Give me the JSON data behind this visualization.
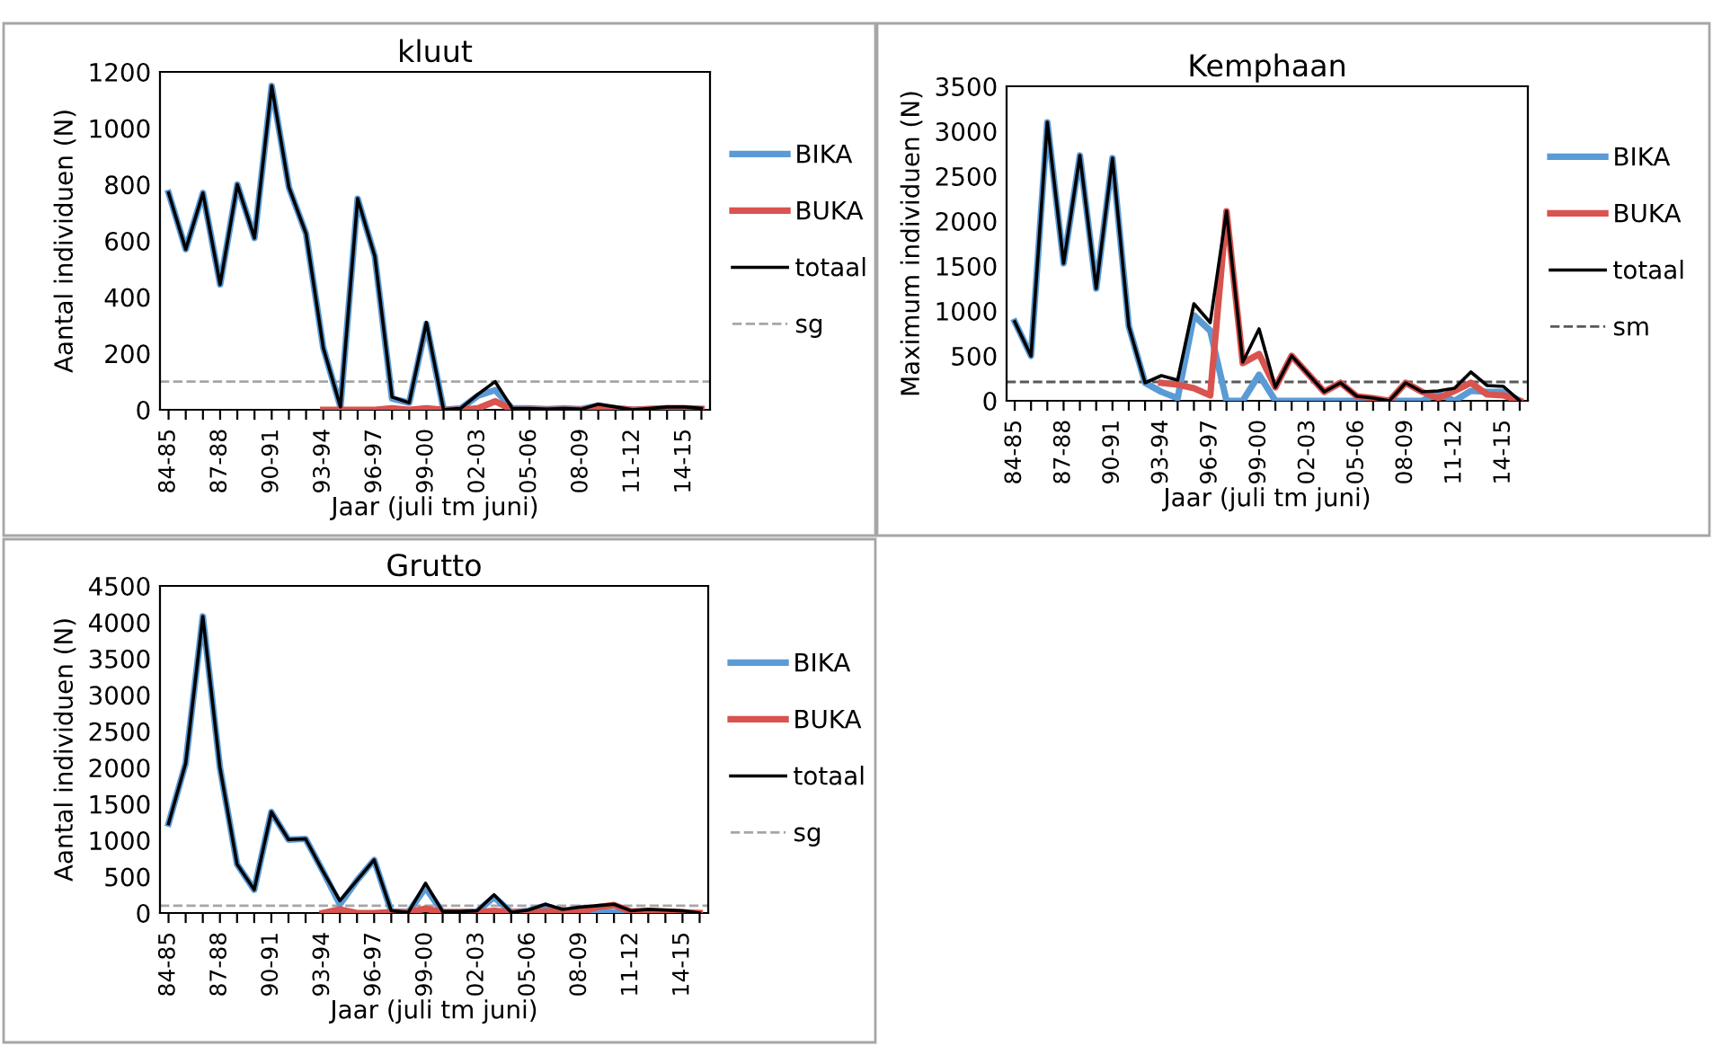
{
  "chart_data": [
    {
      "type": "line",
      "title": "kluut",
      "xlabel": "Jaar (juli tm juni)",
      "ylabel": "Aantal individuen (N)",
      "categories": [
        "84-85",
        null,
        null,
        "87-88",
        null,
        null,
        "90-91",
        null,
        null,
        "93-94",
        null,
        null,
        "96-97",
        null,
        null,
        "99-00",
        null,
        null,
        "02-03",
        null,
        null,
        "05-06",
        null,
        null,
        "08-09",
        null,
        null,
        "11-12",
        null,
        null,
        "14-15",
        null
      ],
      "series": [
        {
          "name": "BIKA",
          "color": "#5b9bd5",
          "values": [
            770,
            570,
            770,
            445,
            800,
            610,
            1150,
            790,
            625,
            220,
            10,
            750,
            545,
            40,
            25,
            305,
            0,
            5,
            50,
            70,
            5,
            5,
            2,
            5,
            2,
            15,
            5,
            0,
            3,
            5,
            5,
            3
          ]
        },
        {
          "name": "BUKA",
          "color": "#d9534f",
          "values": [
            null,
            null,
            null,
            null,
            null,
            null,
            null,
            null,
            null,
            0,
            0,
            0,
            0,
            5,
            0,
            5,
            0,
            0,
            5,
            30,
            0,
            0,
            0,
            0,
            0,
            5,
            5,
            0,
            2,
            5,
            5,
            2
          ]
        },
        {
          "name": "totaal",
          "color": "#000000",
          "values": [
            770,
            570,
            770,
            445,
            800,
            610,
            1150,
            790,
            625,
            220,
            10,
            750,
            545,
            45,
            25,
            310,
            0,
            5,
            55,
            100,
            5,
            5,
            2,
            5,
            2,
            20,
            10,
            0,
            5,
            10,
            10,
            5
          ]
        }
      ],
      "ref_lines": [
        {
          "axis": "y",
          "value": 100,
          "label": "sg",
          "color": "#a6a6a6",
          "line_style": "dashed"
        }
      ],
      "ylim": [
        0,
        1200
      ],
      "yticks": [
        0,
        200,
        400,
        600,
        800,
        1000,
        1200
      ],
      "grid": false,
      "legend": "right"
    },
    {
      "type": "line",
      "title": "Kemphaan",
      "xlabel": "Jaar (juli tm juni)",
      "ylabel": "Maximum individuen (N)",
      "categories": [
        "84-85",
        null,
        null,
        "87-88",
        null,
        null,
        "90-91",
        null,
        null,
        "93-94",
        null,
        null,
        "96-97",
        null,
        null,
        "99-00",
        null,
        null,
        "02-03",
        null,
        null,
        "05-06",
        null,
        null,
        "08-09",
        null,
        null,
        "11-12",
        null,
        null,
        "14-15",
        null
      ],
      "series": [
        {
          "name": "BIKA",
          "color": "#5b9bd5",
          "values": [
            880,
            500,
            3100,
            1530,
            2730,
            1250,
            2700,
            830,
            200,
            100,
            30,
            950,
            780,
            0,
            0,
            290,
            0,
            0,
            0,
            0,
            0,
            0,
            0,
            0,
            0,
            0,
            80,
            0,
            110,
            100,
            100,
            0
          ]
        },
        {
          "name": "BUKA",
          "color": "#d9534f",
          "values": [
            null,
            null,
            null,
            null,
            null,
            null,
            null,
            null,
            null,
            200,
            180,
            140,
            60,
            2110,
            420,
            520,
            150,
            500,
            300,
            100,
            200,
            50,
            30,
            0,
            200,
            100,
            30,
            110,
            200,
            70,
            60,
            0
          ]
        },
        {
          "name": "totaal",
          "color": "#000000",
          "values": [
            880,
            500,
            3100,
            1530,
            2730,
            1250,
            2700,
            830,
            200,
            280,
            230,
            1080,
            870,
            2110,
            430,
            800,
            150,
            500,
            300,
            100,
            200,
            50,
            30,
            0,
            200,
            100,
            110,
            140,
            320,
            170,
            160,
            0
          ]
        }
      ],
      "ref_lines": [
        {
          "axis": "y",
          "value": 210,
          "label": "sm",
          "color": "#595959",
          "line_style": "dashed"
        }
      ],
      "ylim": [
        0,
        3500
      ],
      "yticks": [
        0,
        500,
        1000,
        1500,
        2000,
        2500,
        3000,
        3500
      ],
      "grid": false,
      "legend": "right"
    },
    {
      "type": "line",
      "title": "Grutto",
      "xlabel": "Jaar (juli tm juni)",
      "ylabel": "Aantal individuen (N)",
      "categories": [
        "84-85",
        null,
        null,
        "87-88",
        null,
        null,
        "90-91",
        null,
        null,
        "93-94",
        null,
        null,
        "96-97",
        null,
        null,
        "99-00",
        null,
        null,
        "02-03",
        null,
        null,
        "05-06",
        null,
        null,
        "08-09",
        null,
        null,
        "11-12",
        null,
        null,
        "14-15",
        null
      ],
      "series": [
        {
          "name": "BIKA",
          "color": "#5b9bd5",
          "values": [
            1230,
            2060,
            4080,
            2000,
            670,
            320,
            1390,
            1010,
            1020,
            580,
            120,
            450,
            730,
            20,
            10,
            350,
            10,
            10,
            20,
            220,
            10,
            30,
            100,
            10,
            70,
            20,
            10,
            10,
            20,
            null,
            null,
            null
          ]
        },
        {
          "name": "BUKA",
          "color": "#d9534f",
          "values": [
            null,
            null,
            null,
            null,
            null,
            null,
            null,
            null,
            null,
            0,
            50,
            0,
            0,
            10,
            10,
            60,
            10,
            10,
            10,
            30,
            10,
            10,
            20,
            40,
            10,
            80,
            110,
            20,
            30,
            20,
            10,
            0
          ]
        },
        {
          "name": "totaal",
          "color": "#000000",
          "values": [
            1230,
            2060,
            4080,
            2000,
            670,
            320,
            1390,
            1010,
            1020,
            580,
            170,
            450,
            730,
            30,
            10,
            410,
            20,
            20,
            30,
            250,
            10,
            40,
            120,
            50,
            80,
            100,
            120,
            30,
            50,
            40,
            30,
            0
          ]
        }
      ],
      "ref_lines": [
        {
          "axis": "y",
          "value": 100,
          "label": "sg",
          "color": "#a6a6a6",
          "line_style": "dashed"
        }
      ],
      "ylim": [
        0,
        4500
      ],
      "yticks": [
        0,
        500,
        1000,
        1500,
        2000,
        2500,
        3000,
        3500,
        4000,
        4500
      ],
      "grid": false,
      "legend": "right"
    }
  ]
}
